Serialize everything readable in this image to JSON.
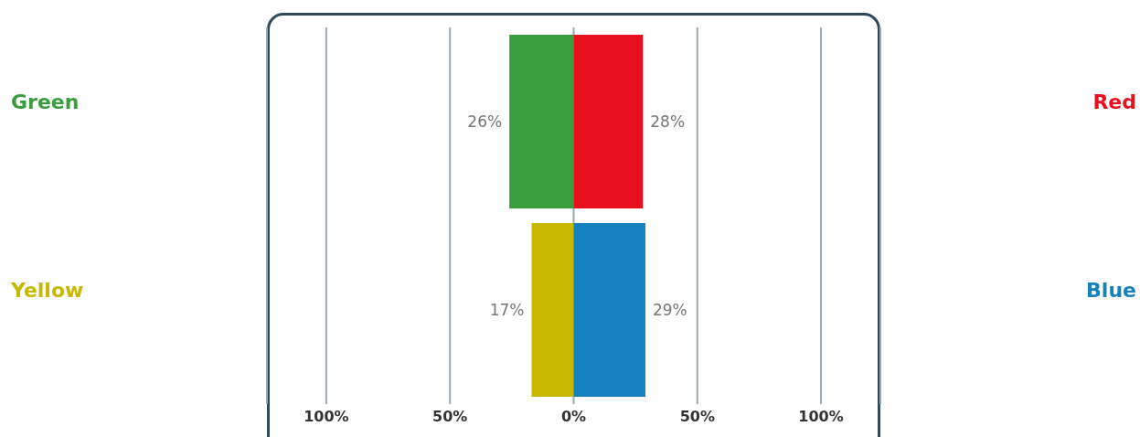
{
  "chart_data": {
    "type": "bar",
    "orientation": "horizontal",
    "categories": [
      null,
      null
    ],
    "series": [
      {
        "name": "Green",
        "color": "#3a9e3c",
        "values": [
          26,
          null
        ],
        "base": [
          -26,
          null
        ],
        "value_labels": [
          "26%",
          null
        ]
      },
      {
        "name": "Red",
        "color": "#e8101c",
        "values": [
          28,
          null
        ],
        "base": [
          0,
          null
        ],
        "value_labels": [
          "28%",
          null
        ]
      },
      {
        "name": "Yellow",
        "color": "#c9b800",
        "values": [
          null,
          17
        ],
        "base": [
          null,
          -17
        ],
        "value_labels": [
          null,
          "17%"
        ]
      },
      {
        "name": "Blue",
        "color": "#1582bd",
        "values": [
          null,
          29
        ],
        "base": [
          null,
          0
        ],
        "value_labels": [
          null,
          "29%"
        ]
      }
    ],
    "xlim": [
      -124,
      124
    ],
    "xticks": [
      {
        "value": -100,
        "label": "100%"
      },
      {
        "value": -50,
        "label": "50%"
      },
      {
        "value": 0,
        "label": "0%"
      },
      {
        "value": 50,
        "label": "50%"
      },
      {
        "value": 100,
        "label": "100%"
      }
    ],
    "grid": "x"
  }
}
